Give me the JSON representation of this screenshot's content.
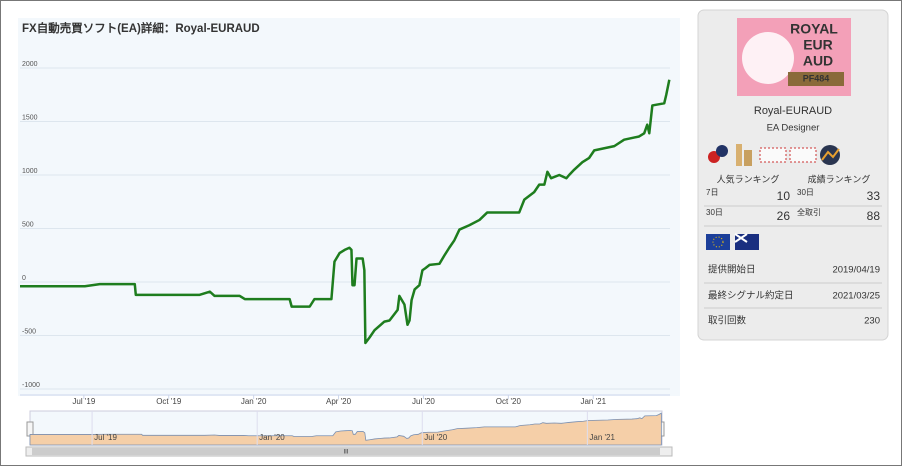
{
  "chart_data": {
    "type": "line",
    "title": "FX自動売買ソフト(EA)詳細：Royal-EURAUD",
    "x": [
      2019.312,
      2019.503,
      2019.547,
      2019.65,
      2019.653,
      2019.841,
      2019.871,
      2019.885,
      2019.959,
      2019.974,
      2020.106,
      2020.112,
      2020.165,
      2020.179,
      2020.229,
      2020.238,
      2020.253,
      2020.268,
      2020.282,
      2020.288,
      2020.291,
      2020.297,
      2020.303,
      2020.321,
      2020.326,
      2020.329,
      2020.341,
      2020.356,
      2020.385,
      2020.4,
      2020.424,
      2020.429,
      2020.444,
      2020.453,
      2020.459,
      2020.465,
      2020.474,
      2020.488,
      2020.497,
      2020.506,
      2020.518,
      2020.547,
      2020.562,
      2020.576,
      2020.591,
      2020.606,
      2020.635,
      2020.665,
      2020.688,
      2020.782,
      2020.797,
      2020.826,
      2020.841,
      2020.856,
      2020.865,
      2020.876,
      2020.9,
      2020.921,
      2020.929,
      2020.944,
      2020.968,
      2020.988,
      2021.003,
      2021.062,
      2021.091,
      2021.135,
      2021.15,
      2021.159,
      2021.165,
      2021.174,
      2021.209,
      2021.215,
      2021.224
    ],
    "series": [
      {
        "color": "#1e7d1e",
        "values": [
          -40,
          -40,
          -20,
          -20,
          -120,
          -120,
          -90,
          -130,
          -130,
          -160,
          -160,
          -230,
          -230,
          -160,
          -160,
          190,
          270,
          300,
          320,
          300,
          -30,
          -30,
          220,
          220,
          110,
          -570,
          -520,
          -450,
          -370,
          -360,
          -260,
          -130,
          -210,
          -400,
          -360,
          -170,
          -70,
          -30,
          110,
          130,
          160,
          170,
          250,
          320,
          390,
          490,
          530,
          580,
          650,
          650,
          770,
          840,
          910,
          910,
          1030,
          970,
          1000,
          970,
          1000,
          1050,
          1120,
          1160,
          1230,
          1270,
          1330,
          1360,
          1390,
          1470,
          1390,
          1650,
          1670,
          1750,
          1890
        ]
      }
    ],
    "ylim": [
      -1000,
      2000
    ],
    "yticks": [
      -1000,
      -500,
      0,
      500,
      1000,
      1500,
      2000
    ],
    "xlim": [
      2019.312,
      2021.226
    ],
    "xticks": [
      {
        "value": 2019.5,
        "label": "Jul '19"
      },
      {
        "value": 2019.75,
        "label": "Oct '19"
      },
      {
        "value": 2020.0,
        "label": "Jan '20"
      },
      {
        "value": 2020.25,
        "label": "Apr '20"
      },
      {
        "value": 2020.5,
        "label": "Jul '20"
      },
      {
        "value": 2020.75,
        "label": "Oct '20"
      },
      {
        "value": 2021.0,
        "label": "Jan '21"
      }
    ],
    "navigator_xticks": [
      {
        "value": 2019.5,
        "label": "Jul '19"
      },
      {
        "value": 2020.0,
        "label": "Jan '20"
      },
      {
        "value": 2020.5,
        "label": "Jul '20"
      },
      {
        "value": 2021.0,
        "label": "Jan '21"
      }
    ],
    "navigator_color": "#f5cfa8",
    "grid": true
  },
  "profile": {
    "logo": [
      "ROYAL",
      "EUR",
      "AUD",
      "PF484"
    ],
    "name": "Royal-EURAUD",
    "role": "EA Designer",
    "ranking_labels": [
      "人気ランキング",
      "成績ランキング"
    ],
    "rankings": [
      {
        "period": "7日",
        "value": 10
      },
      {
        "period": "30日",
        "value": 33
      },
      {
        "period": "30日",
        "value": 26
      },
      {
        "period": "全取引",
        "value": 88
      }
    ],
    "info": [
      {
        "label": "提供開始日",
        "value": "2019/04/19"
      },
      {
        "label": "最終シグナル約定日",
        "value": "2021/03/25"
      },
      {
        "label": "取引回数",
        "value": 230
      }
    ]
  }
}
